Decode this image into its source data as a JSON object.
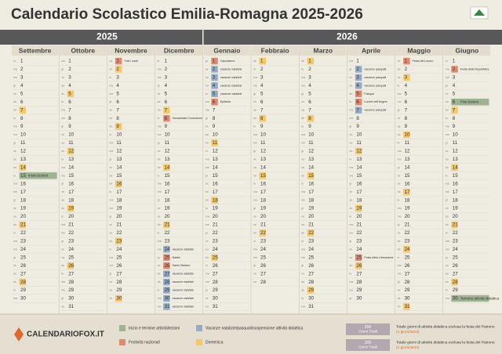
{
  "header": {
    "title": "Calendario Scolastico Emilia-Romagna 2025-2026"
  },
  "kinds": [
    {
      "key": "term",
      "color": "#9db393",
      "label": "Inizio e termine attività/lezioni"
    },
    {
      "key": "holiday",
      "color": "#de8a72",
      "label": "Festività nazionali"
    },
    {
      "key": "vacation",
      "color": "#93abc6",
      "label": "Vacanze natalizie/pasquali/sospensione attività didattica"
    },
    {
      "key": "sunday",
      "color": "#f3c86a",
      "label": "Domenica"
    }
  ],
  "years": [
    {
      "year": "2025",
      "months": [
        {
          "name": "Settembre",
          "days": [
            1,
            2,
            3,
            4,
            5,
            6,
            7,
            8,
            9,
            10,
            11,
            12,
            13,
            14,
            15,
            16,
            17,
            18,
            19,
            20,
            21,
            22,
            23,
            24,
            25,
            26,
            27,
            28,
            29,
            30
          ],
          "weekdays": [
            "lu",
            "ma",
            "me",
            "gi",
            "ve",
            "sa",
            "do",
            "lu",
            "ma",
            "me",
            "gi",
            "ve",
            "sa",
            "do",
            "lu",
            "ma",
            "me",
            "gi",
            "ve",
            "sa",
            "do",
            "lu",
            "ma",
            "me",
            "gi",
            "ve",
            "sa",
            "do",
            "lu",
            "ma"
          ],
          "marks": [
            {
              "day": 7,
              "kind": "sunday"
            },
            {
              "day": 14,
              "kind": "sunday"
            },
            {
              "day": 15,
              "kind": "term",
              "label": "Inizio lezioni"
            },
            {
              "day": 21,
              "kind": "sunday"
            },
            {
              "day": 28,
              "kind": "sunday"
            }
          ]
        },
        {
          "name": "Ottobre",
          "days": [
            1,
            2,
            3,
            4,
            5,
            6,
            7,
            8,
            9,
            10,
            11,
            12,
            13,
            14,
            15,
            16,
            17,
            18,
            19,
            20,
            21,
            22,
            23,
            24,
            25,
            26,
            27,
            28,
            29,
            30,
            31
          ],
          "weekdays": [
            "me",
            "gi",
            "ve",
            "sa",
            "do",
            "lu",
            "ma",
            "me",
            "gi",
            "ve",
            "sa",
            "do",
            "lu",
            "ma",
            "me",
            "gi",
            "ve",
            "sa",
            "do",
            "lu",
            "ma",
            "me",
            "gi",
            "ve",
            "sa",
            "do",
            "lu",
            "ma",
            "me",
            "gi",
            "ve"
          ],
          "marks": [
            {
              "day": 5,
              "kind": "sunday"
            },
            {
              "day": 12,
              "kind": "sunday"
            },
            {
              "day": 19,
              "kind": "sunday"
            },
            {
              "day": 26,
              "kind": "sunday"
            }
          ]
        },
        {
          "name": "Novembre",
          "days": [
            1,
            2,
            3,
            4,
            5,
            6,
            7,
            8,
            9,
            10,
            11,
            12,
            13,
            14,
            15,
            16,
            17,
            18,
            19,
            20,
            21,
            22,
            23,
            24,
            25,
            26,
            27,
            28,
            29,
            30
          ],
          "weekdays": [
            "sa",
            "do",
            "lu",
            "ma",
            "me",
            "gi",
            "ve",
            "sa",
            "do",
            "lu",
            "ma",
            "me",
            "gi",
            "ve",
            "sa",
            "do",
            "lu",
            "ma",
            "me",
            "gi",
            "ve",
            "sa",
            "do",
            "lu",
            "ma",
            "me",
            "gi",
            "ve",
            "sa",
            "do"
          ],
          "marks": [
            {
              "day": 1,
              "kind": "holiday",
              "label": "Tutti i santi"
            },
            {
              "day": 2,
              "kind": "sunday"
            },
            {
              "day": 9,
              "kind": "sunday"
            },
            {
              "day": 16,
              "kind": "sunday"
            },
            {
              "day": 23,
              "kind": "sunday"
            },
            {
              "day": 30,
              "kind": "sunday"
            }
          ]
        },
        {
          "name": "Dicembre",
          "days": [
            1,
            2,
            3,
            4,
            5,
            6,
            7,
            8,
            9,
            10,
            11,
            12,
            13,
            14,
            15,
            16,
            17,
            18,
            19,
            20,
            21,
            22,
            23,
            24,
            25,
            26,
            27,
            28,
            29,
            30,
            31
          ],
          "weekdays": [
            "lu",
            "ma",
            "me",
            "gi",
            "ve",
            "sa",
            "do",
            "lu",
            "ma",
            "me",
            "gi",
            "ve",
            "sa",
            "do",
            "lu",
            "ma",
            "me",
            "gi",
            "ve",
            "sa",
            "do",
            "lu",
            "ma",
            "me",
            "gi",
            "ve",
            "sa",
            "do",
            "lu",
            "ma",
            "me"
          ],
          "marks": [
            {
              "day": 7,
              "kind": "sunday"
            },
            {
              "day": 8,
              "kind": "holiday",
              "label": "Immacolata Concezione"
            },
            {
              "day": 14,
              "kind": "sunday"
            },
            {
              "day": 21,
              "kind": "sunday"
            },
            {
              "day": 24,
              "kind": "vacation",
              "label": "vacanze natalizie"
            },
            {
              "day": 25,
              "kind": "holiday",
              "label": "Natale"
            },
            {
              "day": 26,
              "kind": "holiday",
              "label": "Santo Stefano"
            },
            {
              "day": 27,
              "kind": "vacation",
              "label": "vacanze natalizie"
            },
            {
              "day": 28,
              "kind": "vacation",
              "label": "vacanze natalizie"
            },
            {
              "day": 29,
              "kind": "vacation",
              "label": "vacanze natalizie"
            },
            {
              "day": 30,
              "kind": "vacation",
              "label": "vacanze natalizie"
            },
            {
              "day": 31,
              "kind": "vacation",
              "label": "vacanze natalizie"
            }
          ]
        }
      ]
    },
    {
      "year": "2026",
      "months": [
        {
          "name": "Gennaio",
          "days": [
            1,
            2,
            3,
            4,
            5,
            6,
            7,
            8,
            9,
            10,
            11,
            12,
            13,
            14,
            15,
            16,
            17,
            18,
            19,
            20,
            21,
            22,
            23,
            24,
            25,
            26,
            27,
            28,
            29,
            30,
            31
          ],
          "weekdays": [
            "gi",
            "ve",
            "sa",
            "do",
            "lu",
            "ma",
            "me",
            "gi",
            "ve",
            "sa",
            "do",
            "lu",
            "ma",
            "me",
            "gi",
            "ve",
            "sa",
            "do",
            "lu",
            "ma",
            "me",
            "gi",
            "ve",
            "sa",
            "do",
            "lu",
            "ma",
            "me",
            "gi",
            "ve",
            "sa"
          ],
          "marks": [
            {
              "day": 1,
              "kind": "holiday",
              "label": "Capodanno"
            },
            {
              "day": 2,
              "kind": "vacation",
              "label": "vacanze natalizie"
            },
            {
              "day": 3,
              "kind": "vacation",
              "label": "vacanze natalizie"
            },
            {
              "day": 4,
              "kind": "vacation",
              "label": "vacanze natalizie"
            },
            {
              "day": 5,
              "kind": "vacation",
              "label": "vacanze natalizie"
            },
            {
              "day": 6,
              "kind": "holiday",
              "label": "Epifania"
            },
            {
              "day": 11,
              "kind": "sunday"
            },
            {
              "day": 18,
              "kind": "sunday"
            },
            {
              "day": 25,
              "kind": "sunday"
            }
          ]
        },
        {
          "name": "Febbraio",
          "days": [
            1,
            2,
            3,
            4,
            5,
            6,
            7,
            8,
            9,
            10,
            11,
            12,
            13,
            14,
            15,
            16,
            17,
            18,
            19,
            20,
            21,
            22,
            23,
            24,
            25,
            26,
            27,
            28
          ],
          "weekdays": [
            "do",
            "lu",
            "ma",
            "me",
            "gi",
            "ve",
            "sa",
            "do",
            "lu",
            "ma",
            "me",
            "gi",
            "ve",
            "sa",
            "do",
            "lu",
            "ma",
            "me",
            "gi",
            "ve",
            "sa",
            "do",
            "lu",
            "ma",
            "me",
            "gi",
            "ve",
            "sa"
          ],
          "marks": [
            {
              "day": 1,
              "kind": "sunday"
            },
            {
              "day": 8,
              "kind": "sunday"
            },
            {
              "day": 15,
              "kind": "sunday"
            },
            {
              "day": 22,
              "kind": "sunday"
            }
          ]
        },
        {
          "name": "Marzo",
          "days": [
            1,
            2,
            3,
            4,
            5,
            6,
            7,
            8,
            9,
            10,
            11,
            12,
            13,
            14,
            15,
            16,
            17,
            18,
            19,
            20,
            21,
            22,
            23,
            24,
            25,
            26,
            27,
            28,
            29,
            30,
            31
          ],
          "weekdays": [
            "do",
            "lu",
            "ma",
            "me",
            "gi",
            "ve",
            "sa",
            "do",
            "lu",
            "ma",
            "me",
            "gi",
            "ve",
            "sa",
            "do",
            "lu",
            "ma",
            "me",
            "gi",
            "ve",
            "sa",
            "do",
            "lu",
            "ma",
            "me",
            "gi",
            "ve",
            "sa",
            "do",
            "lu",
            "ma"
          ],
          "marks": [
            {
              "day": 1,
              "kind": "sunday"
            },
            {
              "day": 8,
              "kind": "sunday"
            },
            {
              "day": 15,
              "kind": "sunday"
            },
            {
              "day": 22,
              "kind": "sunday"
            },
            {
              "day": 29,
              "kind": "sunday"
            }
          ]
        },
        {
          "name": "Aprile",
          "days": [
            1,
            2,
            3,
            4,
            5,
            6,
            7,
            8,
            9,
            10,
            11,
            12,
            13,
            14,
            15,
            16,
            17,
            18,
            19,
            20,
            21,
            22,
            23,
            24,
            25,
            26,
            27,
            28,
            29,
            30
          ],
          "weekdays": [
            "me",
            "gi",
            "ve",
            "sa",
            "do",
            "lu",
            "ma",
            "me",
            "gi",
            "ve",
            "sa",
            "do",
            "lu",
            "ma",
            "me",
            "gi",
            "ve",
            "sa",
            "do",
            "lu",
            "ma",
            "me",
            "gi",
            "ve",
            "sa",
            "do",
            "lu",
            "ma",
            "me",
            "gi"
          ],
          "marks": [
            {
              "day": 2,
              "kind": "vacation",
              "label": "vacanze pasquali"
            },
            {
              "day": 3,
              "kind": "vacation",
              "label": "vacanze pasquali"
            },
            {
              "day": 4,
              "kind": "vacation",
              "label": "vacanze pasquali"
            },
            {
              "day": 5,
              "kind": "holiday",
              "label": "Pasqua"
            },
            {
              "day": 6,
              "kind": "holiday",
              "label": "Lunedì dell'Angelo"
            },
            {
              "day": 7,
              "kind": "vacation",
              "label": "vacanze pasquali"
            },
            {
              "day": 12,
              "kind": "sunday"
            },
            {
              "day": 19,
              "kind": "sunday"
            },
            {
              "day": 25,
              "kind": "holiday",
              "label": "Festa della Liberazione"
            },
            {
              "day": 26,
              "kind": "sunday"
            }
          ]
        },
        {
          "name": "Maggio",
          "days": [
            1,
            2,
            3,
            4,
            5,
            6,
            7,
            8,
            9,
            10,
            11,
            12,
            13,
            14,
            15,
            16,
            17,
            18,
            19,
            20,
            21,
            22,
            23,
            24,
            25,
            26,
            27,
            28,
            29,
            30,
            31
          ],
          "weekdays": [
            "ve",
            "sa",
            "do",
            "lu",
            "ma",
            "me",
            "gi",
            "ve",
            "sa",
            "do",
            "lu",
            "ma",
            "me",
            "gi",
            "ve",
            "sa",
            "do",
            "lu",
            "ma",
            "me",
            "gi",
            "ve",
            "sa",
            "do",
            "lu",
            "ma",
            "me",
            "gi",
            "ve",
            "sa",
            "do"
          ],
          "marks": [
            {
              "day": 1,
              "kind": "holiday",
              "label": "Festa del Lavoro"
            },
            {
              "day": 3,
              "kind": "sunday"
            },
            {
              "day": 10,
              "kind": "sunday"
            },
            {
              "day": 17,
              "kind": "sunday"
            },
            {
              "day": 24,
              "kind": "sunday"
            },
            {
              "day": 31,
              "kind": "sunday"
            }
          ]
        },
        {
          "name": "Giugno",
          "days": [
            1,
            2,
            3,
            4,
            5,
            6,
            7,
            8,
            9,
            10,
            11,
            12,
            13,
            14,
            15,
            16,
            17,
            18,
            19,
            20,
            21,
            22,
            23,
            24,
            25,
            26,
            27,
            28,
            29,
            30
          ],
          "weekdays": [
            "lu",
            "ma",
            "me",
            "gi",
            "ve",
            "sa",
            "do",
            "lu",
            "ma",
            "me",
            "gi",
            "ve",
            "sa",
            "do",
            "lu",
            "ma",
            "me",
            "gi",
            "ve",
            "sa",
            "do",
            "lu",
            "ma",
            "me",
            "gi",
            "ve",
            "sa",
            "do",
            "lu",
            "ma"
          ],
          "marks": [
            {
              "day": 2,
              "kind": "holiday",
              "label": "Festa della Repubblica"
            },
            {
              "day": 6,
              "kind": "term",
              "label": "Fine lezioni"
            },
            {
              "day": 7,
              "kind": "sunday"
            },
            {
              "day": 14,
              "kind": "sunday"
            },
            {
              "day": 21,
              "kind": "sunday"
            },
            {
              "day": 28,
              "kind": "sunday"
            },
            {
              "day": 30,
              "kind": "term",
              "label": "Termine attività didattica"
            }
          ]
        }
      ]
    }
  ],
  "footer": {
    "brand": "CALENDARIOFOX.IT",
    "totals": [
      {
        "count": "206",
        "unit": "Giorni Totali",
        "text": "Totale giorni di attività didattica esclusa la festa del Patrono",
        "note": "(1 giorni/anni)"
      },
      {
        "count": "205",
        "unit": "Giorni Totali",
        "text": "Totale giorni di attività didattica esclusa la festa del Patrono",
        "note": "(1 giorni/anni)"
      }
    ]
  }
}
